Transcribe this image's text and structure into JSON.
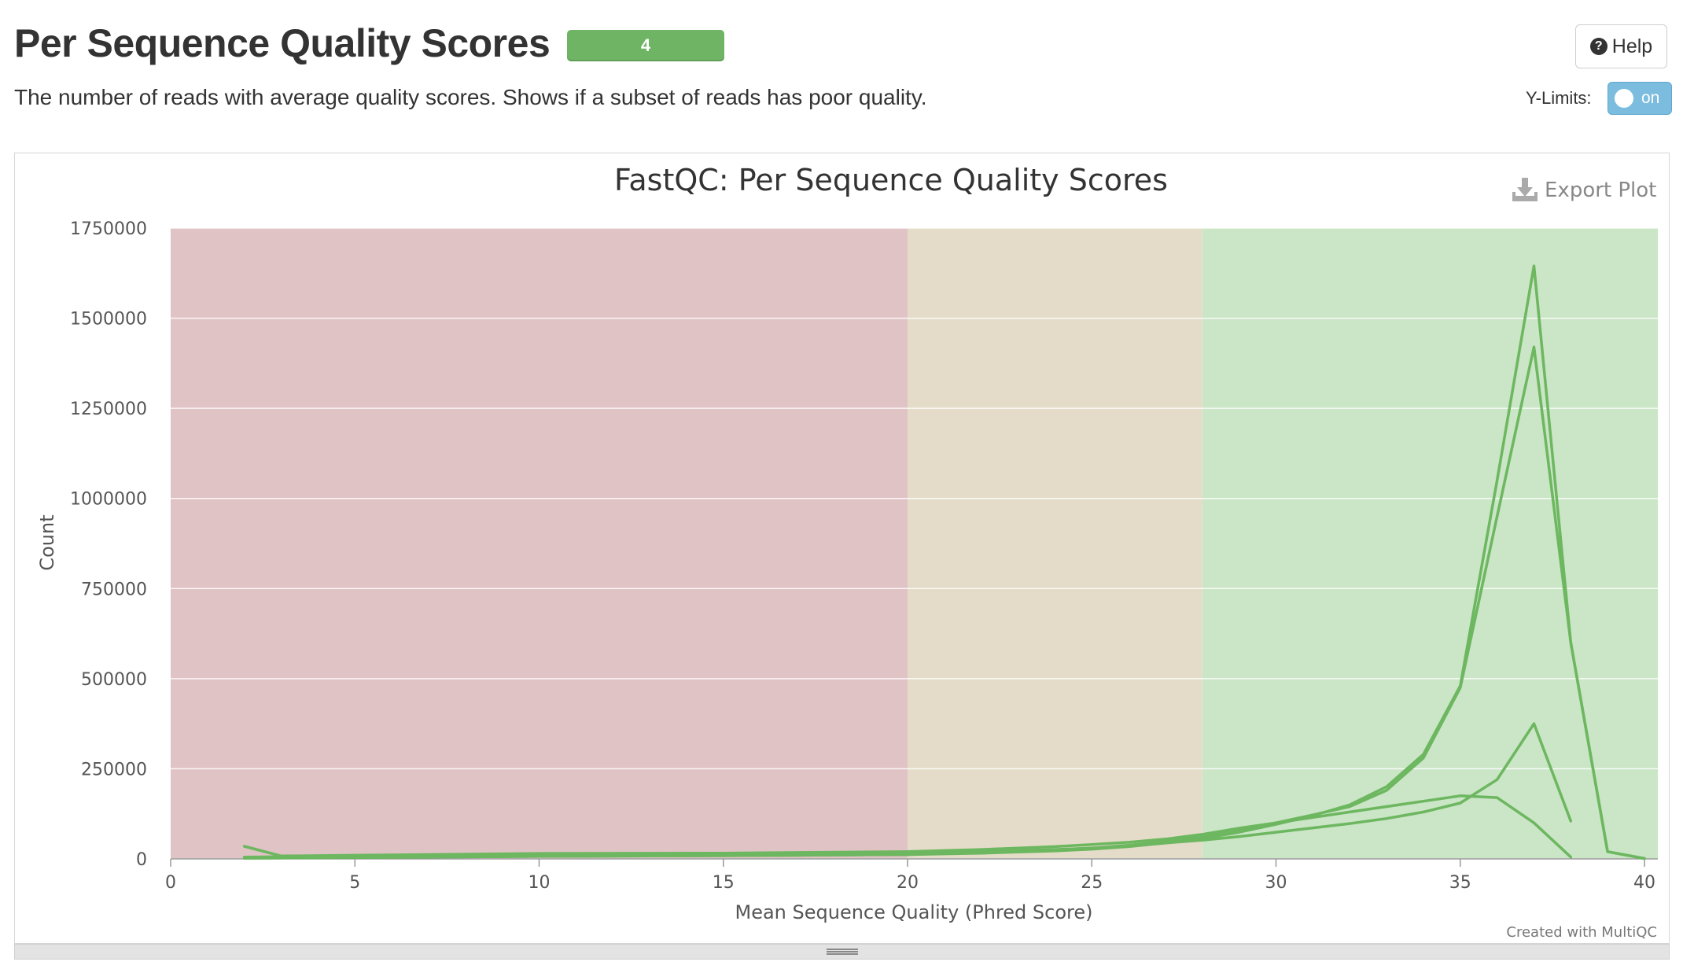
{
  "header": {
    "title": "Per Sequence Quality Scores",
    "badge_count": "4",
    "badge_color": "#6fb464",
    "description": "The number of reads with average quality scores. Shows if a subset of reads has poor quality.",
    "help_label": "Help",
    "help_icon": "question-circle-icon",
    "ylimits_label": "Y-Limits:",
    "toggle_label": "on"
  },
  "plot": {
    "export_label": "Export Plot",
    "export_icon": "download-icon",
    "credit": "Created with MultiQC"
  },
  "chart_data": {
    "type": "line",
    "title": "FastQC: Per Sequence Quality Scores",
    "xlabel": "Mean Sequence Quality (Phred Score)",
    "ylabel": "Count",
    "xlim": [
      0,
      40
    ],
    "ylim": [
      0,
      1750000
    ],
    "x_ticks": [
      "0",
      "5",
      "10",
      "15",
      "20",
      "25",
      "30",
      "35",
      "40"
    ],
    "y_ticks": [
      "0",
      "250000",
      "500000",
      "750000",
      "1000000",
      "1250000",
      "1500000",
      "1750000"
    ],
    "grid": true,
    "legend": "none",
    "bands": [
      {
        "from": 0,
        "to": 20,
        "color": "#e0c3c5"
      },
      {
        "from": 20,
        "to": 28,
        "color": "#e4dcc8"
      },
      {
        "from": 28,
        "to": 40.4,
        "color": "#cbe5c7"
      }
    ],
    "line_color": "#6cb75f",
    "series": [
      {
        "values": [
          [
            2,
            2000
          ],
          [
            5,
            4000
          ],
          [
            10,
            7000
          ],
          [
            15,
            9000
          ],
          [
            20,
            12000
          ],
          [
            22,
            16000
          ],
          [
            24,
            22000
          ],
          [
            25,
            27000
          ],
          [
            26,
            34000
          ],
          [
            27,
            44000
          ],
          [
            28,
            56000
          ],
          [
            29,
            74000
          ],
          [
            30,
            96000
          ],
          [
            31,
            120000
          ],
          [
            32,
            150000
          ],
          [
            33,
            200000
          ],
          [
            34,
            290000
          ],
          [
            35,
            480000
          ],
          [
            36,
            1050000
          ],
          [
            37,
            1645000
          ],
          [
            38,
            600000
          ],
          [
            39,
            20000
          ],
          [
            40,
            1000
          ]
        ]
      },
      {
        "values": [
          [
            2,
            2000
          ],
          [
            5,
            4000
          ],
          [
            10,
            7000
          ],
          [
            15,
            9000
          ],
          [
            20,
            12000
          ],
          [
            22,
            18000
          ],
          [
            24,
            25000
          ],
          [
            25,
            30000
          ],
          [
            26,
            38000
          ],
          [
            27,
            48000
          ],
          [
            28,
            62000
          ],
          [
            29,
            80000
          ],
          [
            30,
            100000
          ],
          [
            31,
            122000
          ],
          [
            32,
            145000
          ],
          [
            33,
            190000
          ],
          [
            34,
            280000
          ],
          [
            35,
            475000
          ],
          [
            36,
            950000
          ],
          [
            37,
            1420000
          ],
          [
            38,
            600000
          ],
          [
            39,
            20000
          ],
          [
            40,
            1000
          ]
        ]
      },
      {
        "values": [
          [
            2,
            35000
          ],
          [
            3,
            8000
          ],
          [
            5,
            10000
          ],
          [
            10,
            15000
          ],
          [
            15,
            16000
          ],
          [
            20,
            20000
          ],
          [
            22,
            26000
          ],
          [
            24,
            34000
          ],
          [
            25,
            40000
          ],
          [
            26,
            46000
          ],
          [
            27,
            55000
          ],
          [
            28,
            68000
          ],
          [
            29,
            85000
          ],
          [
            30,
            100000
          ],
          [
            31,
            115000
          ],
          [
            32,
            130000
          ],
          [
            33,
            145000
          ],
          [
            34,
            160000
          ],
          [
            35,
            175000
          ],
          [
            36,
            170000
          ],
          [
            37,
            100000
          ],
          [
            38,
            5000
          ]
        ]
      },
      {
        "values": [
          [
            2,
            5000
          ],
          [
            5,
            8000
          ],
          [
            10,
            12000
          ],
          [
            15,
            14000
          ],
          [
            20,
            16000
          ],
          [
            22,
            20000
          ],
          [
            24,
            26000
          ],
          [
            25,
            30000
          ],
          [
            26,
            36000
          ],
          [
            27,
            44000
          ],
          [
            28,
            52000
          ],
          [
            29,
            62000
          ],
          [
            30,
            74000
          ],
          [
            31,
            86000
          ],
          [
            32,
            98000
          ],
          [
            33,
            112000
          ],
          [
            34,
            130000
          ],
          [
            35,
            155000
          ],
          [
            36,
            220000
          ],
          [
            37,
            375000
          ],
          [
            38,
            105000
          ]
        ]
      }
    ]
  }
}
